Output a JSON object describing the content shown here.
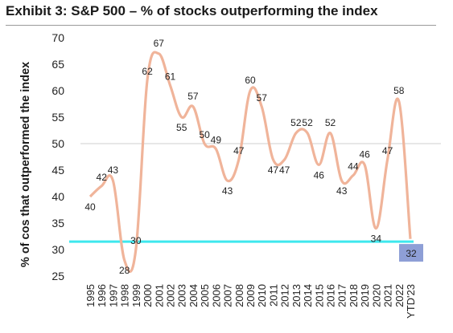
{
  "title": "Exhibit 3: S&P 500 – % of stocks outperforming the index",
  "chart_data": {
    "type": "line",
    "title": "Exhibit 3: S&P 500 – % of stocks outperforming the index",
    "ylabel": "% of cos that outperformed the index",
    "xlabel": "",
    "ylim": [
      25,
      70
    ],
    "yticks": [
      25,
      30,
      35,
      40,
      45,
      50,
      55,
      60,
      65,
      70
    ],
    "categories": [
      "1995",
      "1996",
      "1997",
      "1998",
      "1999",
      "2000",
      "2001",
      "2002",
      "2003",
      "2004",
      "2005",
      "2006",
      "2007",
      "2008",
      "2009",
      "2010",
      "2011",
      "2012",
      "2013",
      "2014",
      "2015",
      "2016",
      "2017",
      "2018",
      "2019",
      "2020",
      "2021",
      "2022",
      "YTD'23"
    ],
    "values": [
      40,
      42,
      43,
      28,
      30,
      62,
      67,
      61,
      55,
      57,
      50,
      49,
      43,
      47,
      60,
      57,
      47,
      47,
      52,
      52,
      46,
      52,
      43,
      44,
      46,
      34,
      47,
      58,
      32
    ],
    "series_color": "#f0b49a",
    "reference_line": {
      "value": 31.5,
      "color": "#3ee8ee"
    },
    "grid": "horizontal line at 50 only",
    "highlight_last_label_bg": "#8e9fd6"
  }
}
